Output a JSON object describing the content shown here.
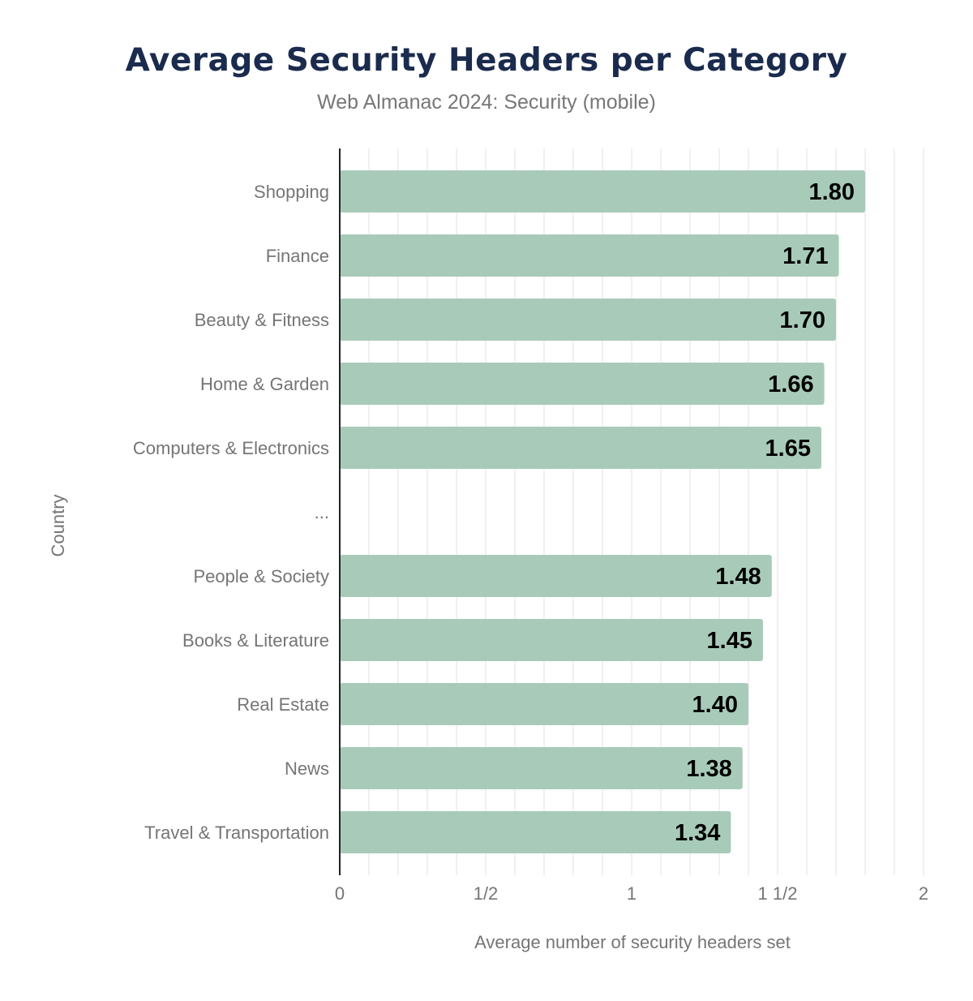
{
  "chart_data": {
    "type": "bar",
    "orientation": "horizontal",
    "title": "Average Security Headers per Category",
    "subtitle": "Web Almanac 2024: Security (mobile)",
    "xlabel": "Average number of security headers set",
    "ylabel": "Country",
    "xlim": [
      0,
      2
    ],
    "xticks": [
      {
        "value": 0,
        "label": "0"
      },
      {
        "value": 0.5,
        "label": "1/2"
      },
      {
        "value": 1,
        "label": "1"
      },
      {
        "value": 1.5,
        "label": "1  1/2"
      },
      {
        "value": 2,
        "label": "2"
      }
    ],
    "grid": true,
    "bar_color": "#a8cbb9",
    "categories": [
      "Shopping",
      "Finance",
      "Beauty & Fitness",
      "Home & Garden",
      "Computers & Electronics",
      "...",
      "People & Society",
      "Books & Literature",
      "Real Estate",
      "News",
      "Travel & Transportation"
    ],
    "values": [
      1.8,
      1.71,
      1.7,
      1.66,
      1.65,
      null,
      1.48,
      1.45,
      1.4,
      1.38,
      1.34
    ],
    "value_labels": [
      "1.80",
      "1.71",
      "1.70",
      "1.66",
      "1.65",
      "",
      "1.48",
      "1.45",
      "1.40",
      "1.38",
      "1.34"
    ]
  }
}
